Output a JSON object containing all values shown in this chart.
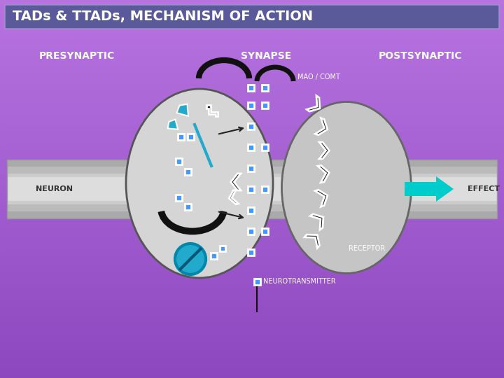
{
  "title": "TADs & TTADs, MECHANISM OF ACTION",
  "title_bg": "#5555aa",
  "title_color": "#ffffff",
  "bg_color": "#9966cc",
  "label_presynaptic": "PRESYNAPTIC",
  "label_synapse": "SYNAPSE",
  "label_postsynaptic": "POSTSYNAPTIC",
  "label_neuron": "NEURON",
  "label_effect": "EFFECT",
  "label_mao_comt": "MAO / COMT",
  "label_receptor": "RECEPTOR",
  "label_neurotransmitter": "NEUROTRANSMITTER",
  "label_color": "#ffffff",
  "pre_cell_color": "#d8d8d8",
  "post_cell_color": "#c0c0c0",
  "arrow_color": "#00cccc",
  "nt_color": "#4499ff",
  "black_shape_color": "#111111",
  "cyan_shape_color": "#22aacc"
}
